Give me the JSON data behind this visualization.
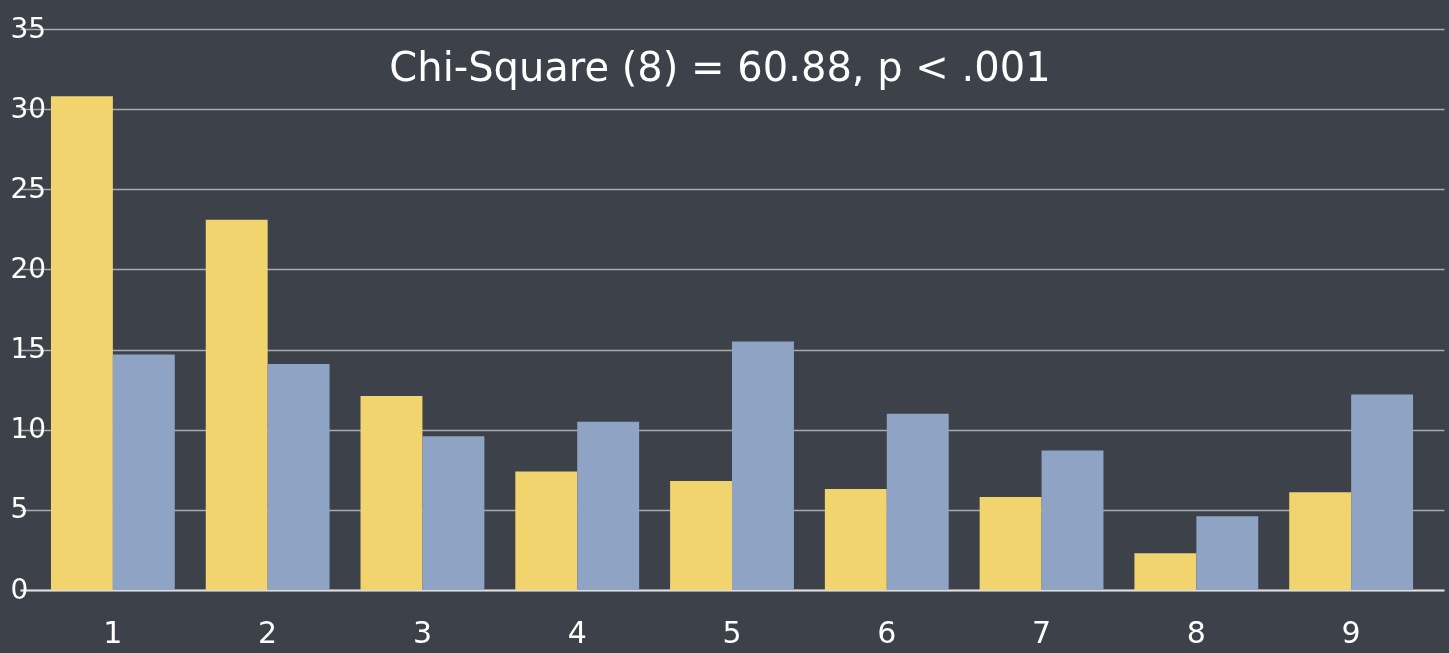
{
  "chart_data": {
    "type": "bar",
    "categories": [
      "1",
      "2",
      "3",
      "4",
      "5",
      "6",
      "7",
      "8",
      "9"
    ],
    "series": [
      {
        "color": "#f2d46e",
        "values": [
          30.8,
          23.1,
          12.1,
          7.4,
          6.8,
          6.3,
          5.8,
          2.3,
          6.1
        ]
      },
      {
        "color": "#8fa3c4",
        "values": [
          14.7,
          14.1,
          9.6,
          10.5,
          15.5,
          11.0,
          8.7,
          4.6,
          12.2
        ]
      }
    ],
    "ylim": [
      0,
      35
    ],
    "yticks": [
      0,
      5,
      10,
      15,
      20,
      25,
      30,
      35
    ],
    "grid": "y",
    "legend": false,
    "annotations": [
      "Chi-Square (8) = 60.88, p < .001"
    ]
  }
}
